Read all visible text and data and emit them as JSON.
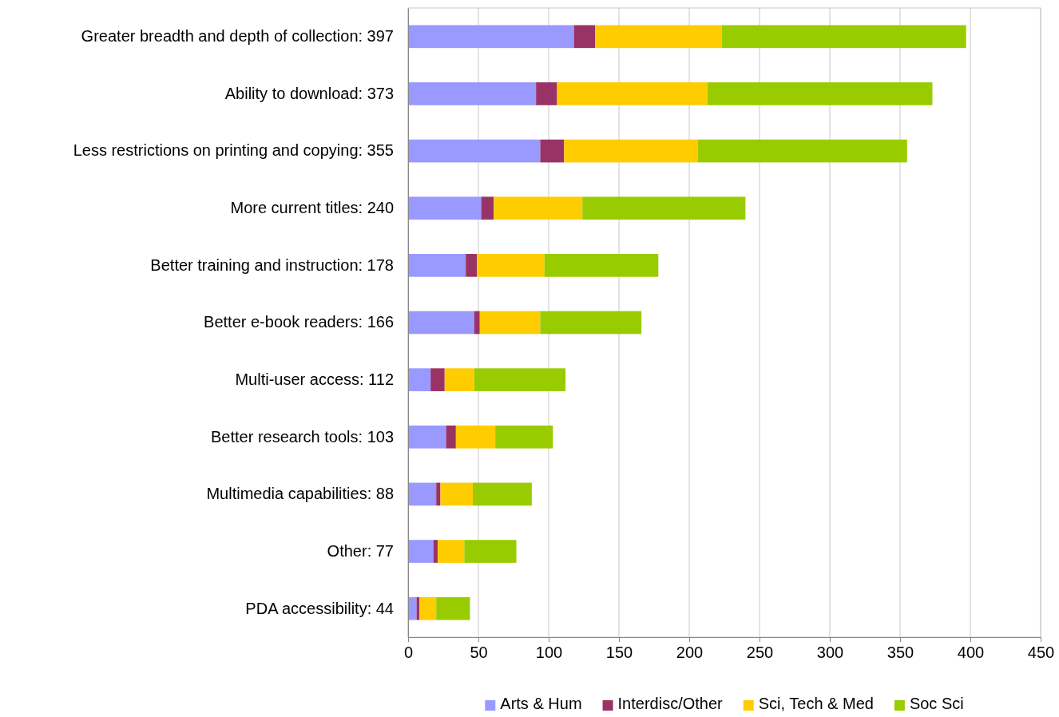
{
  "chart_data": {
    "type": "bar",
    "orientation": "horizontal",
    "stacked": true,
    "categories": [
      "Greater breadth and depth of collection: 397",
      "Ability to download: 373",
      "Less restrictions on printing and copying: 355",
      "More current titles: 240",
      "Better training and instruction: 178",
      "Better e-book readers: 166",
      "Multi-user access: 112",
      "Better research tools: 103",
      "Multimedia capabilities: 88",
      "Other: 77",
      "PDA accessibility: 44"
    ],
    "series": [
      {
        "name": "Arts & Hum",
        "color": "#9999ff",
        "values": [
          118,
          91,
          94,
          52,
          41,
          47,
          16,
          27,
          20,
          18,
          6
        ]
      },
      {
        "name": "Interdisc/Other",
        "color": "#993366",
        "values": [
          15,
          15,
          17,
          9,
          8,
          4,
          10,
          7,
          3,
          3,
          2
        ]
      },
      {
        "name": "Sci, Tech & Med",
        "color": "#ffcc00",
        "values": [
          90,
          107,
          95,
          63,
          48,
          43,
          21,
          28,
          23,
          19,
          12
        ]
      },
      {
        "name": "Soc Sci",
        "color": "#99cc00",
        "values": [
          174,
          160,
          149,
          116,
          81,
          72,
          65,
          41,
          42,
          37,
          24
        ]
      }
    ],
    "xlim": [
      0,
      450
    ],
    "xticks": [
      0,
      50,
      100,
      150,
      200,
      250,
      300,
      350,
      400,
      450
    ],
    "grid": "x",
    "legend": "bottom"
  }
}
